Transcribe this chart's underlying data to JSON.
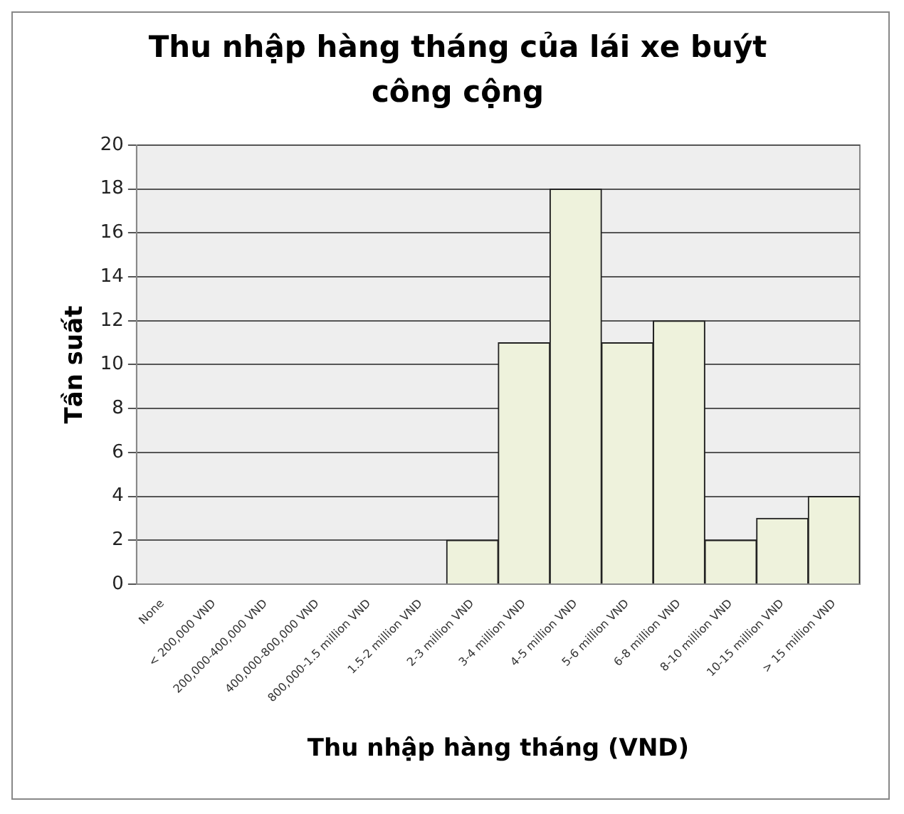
{
  "chart_data": {
    "type": "bar",
    "title": "Thu nhập hàng tháng của lái xe buýt công cộng",
    "xlabel": "Thu nhập hàng tháng (VND)",
    "ylabel": "Tần suất",
    "categories": [
      "None",
      "< 200,000 VND",
      "200,000-400,000 VND",
      "400,000-800,000 VND",
      "800,000-1.5 million VND",
      "1.5-2 million VND",
      "2-3 million VND",
      "3-4 million VND",
      "4-5 million VND",
      "5-6 million VND",
      "6-8 million VND",
      "8-10 million VND",
      "10-15 million VND",
      "> 15 million VND"
    ],
    "values": [
      0,
      0,
      0,
      0,
      0,
      0,
      2,
      11,
      18,
      11,
      12,
      2,
      3,
      4
    ],
    "color": "#eef2dc",
    "ylim": [
      0,
      20
    ],
    "yticks": [
      0,
      2,
      4,
      6,
      8,
      10,
      12,
      14,
      16,
      18,
      20
    ],
    "grid": "y",
    "legend": false
  }
}
